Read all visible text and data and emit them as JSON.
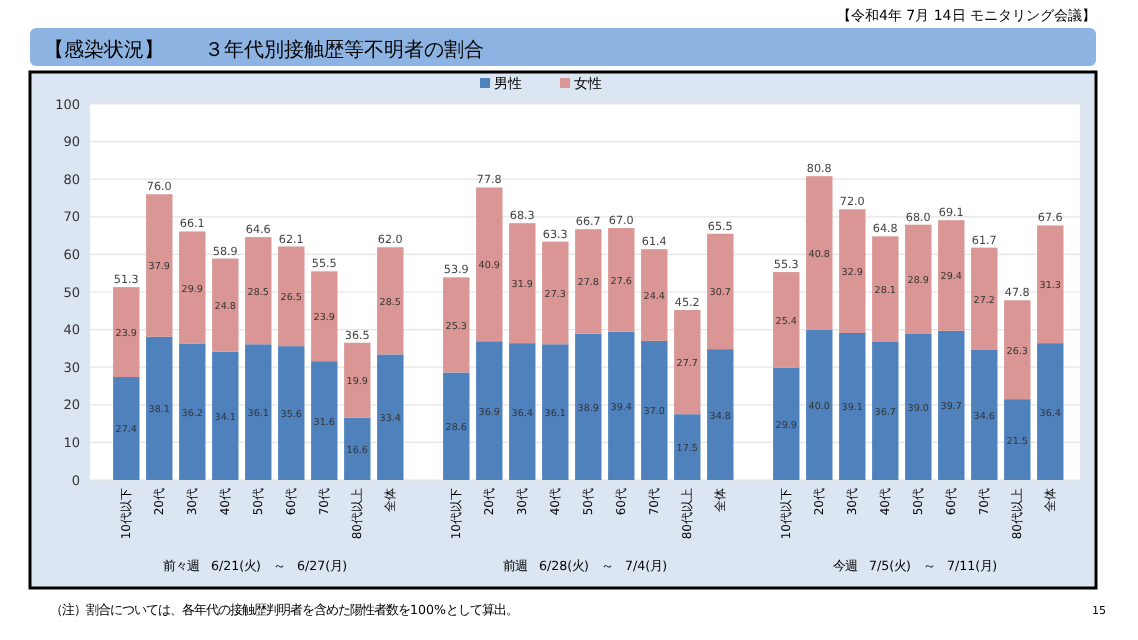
{
  "chart_data": {
    "type": "bar",
    "stacked": true,
    "title": "【感染状況】　　３年代別接触歴等不明者の割合",
    "subtitle": "【令和4年 7月 14日 モニタリング会議】",
    "categories": [
      "10代以下",
      "20代",
      "30代",
      "40代",
      "50代",
      "60代",
      "70代",
      "80代以上",
      "全体",
      "10代以下",
      "20代",
      "30代",
      "40代",
      "50代",
      "60代",
      "70代",
      "80代以上",
      "全体",
      "10代以下",
      "20代",
      "30代",
      "40代",
      "50代",
      "60代",
      "70代",
      "80代以上",
      "全体"
    ],
    "series": [
      {
        "name": "男性",
        "color": "#4f81bd",
        "values": [
          27.4,
          38.1,
          36.2,
          34.1,
          36.1,
          35.6,
          31.6,
          16.6,
          33.4,
          28.6,
          36.9,
          36.4,
          36.1,
          38.9,
          39.4,
          37.0,
          17.5,
          34.8,
          29.9,
          40.0,
          39.1,
          36.7,
          39.0,
          39.7,
          34.6,
          21.5,
          36.4
        ],
        "value_labels": [
          "27.4",
          "38.1",
          "36.2",
          "34.1",
          "36.1",
          "35.6",
          "31.6",
          "16.6",
          "33.4",
          "28.6",
          "36.9",
          "36.4",
          "36.1",
          "38.9",
          "39.4",
          "37.0",
          "17.5",
          "34.8",
          "29.9",
          "40.0",
          "39.1",
          "36.7",
          "39.0",
          "39.7",
          "34.6",
          "21.5",
          "36.4"
        ]
      },
      {
        "name": "女性",
        "color": "#d99694",
        "values": [
          23.9,
          37.9,
          29.9,
          24.8,
          28.5,
          26.5,
          23.9,
          19.9,
          28.5,
          25.3,
          40.9,
          31.9,
          27.3,
          27.8,
          27.6,
          24.4,
          27.7,
          30.7,
          25.4,
          40.8,
          32.9,
          28.1,
          28.9,
          29.4,
          27.2,
          26.3,
          31.3
        ],
        "value_labels": [
          "23.9",
          "37.9",
          "29.9",
          "24.8",
          "28.5",
          "26.5",
          "23.9",
          "19.9",
          "28.5",
          "25.3",
          "40.9",
          "31.9",
          "27.3",
          "27.8",
          "27.6",
          "24.4",
          "27.7",
          "30.7",
          "25.4",
          "40.8",
          "32.9",
          "28.1",
          "28.9",
          "29.4",
          "27.2",
          "26.3",
          "31.3"
        ]
      }
    ],
    "totals": [
      "51.3",
      "76.0",
      "66.1",
      "58.9",
      "64.6",
      "62.1",
      "55.5",
      "36.5",
      "62.0",
      "53.9",
      "77.8",
      "68.3",
      "63.3",
      "66.7",
      "67.0",
      "61.4",
      "45.2",
      "65.5",
      "55.3",
      "80.8",
      "72.0",
      "64.8",
      "68.0",
      "69.1",
      "61.7",
      "47.8",
      "67.6"
    ],
    "ylim": [
      0,
      100
    ],
    "yticks": [
      0,
      10,
      20,
      30,
      40,
      50,
      60,
      70,
      80,
      90,
      100
    ],
    "grid": "y",
    "legend": "top",
    "annotations": [
      "前々週　6/21(火)　～　6/27(月)",
      "前週　6/28(火)　～　7/4(月)",
      "今週　7/5(火)　～　7/11(月)",
      "（注）割合については、各年代の接触歴判明者を含めた陽性者数を100%として算出。",
      "15"
    ]
  }
}
